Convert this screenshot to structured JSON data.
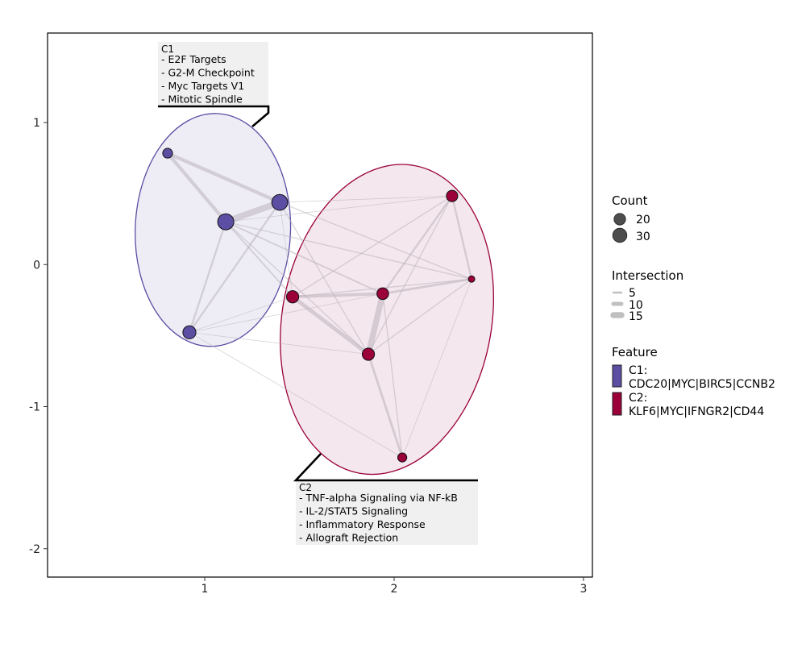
{
  "chart_data": {
    "type": "network",
    "title": "",
    "xlabel": "",
    "ylabel": "",
    "xlim": [
      0.17,
      3.047
    ],
    "ylim": [
      -2.2,
      1.63
    ],
    "x_ticks": [
      1,
      2,
      3
    ],
    "x_tick_labels": [
      "1",
      "2",
      "3"
    ],
    "y_ticks": [
      1,
      0,
      -1,
      -2
    ],
    "y_tick_labels": [
      "1",
      "0",
      "-1",
      "-2"
    ],
    "grid": false,
    "colors": {
      "C1": "#5b4ea3",
      "C2": "#9b0039",
      "edge": "#c8c0c8"
    },
    "clusters": [
      {
        "id": "C1",
        "center": [
          1.043,
          0.244
        ],
        "semi_axes": [
          0.41,
          0.82
        ],
        "angle_deg": 2,
        "label_title": "C1",
        "label_lines": [
          "- E2F Targets",
          "- G2-M Checkpoint",
          "- Myc Targets V1",
          "- Mitotic Spindle"
        ]
      },
      {
        "id": "C2",
        "center": [
          1.962,
          -0.386
        ],
        "semi_axes": [
          0.553,
          1.1
        ],
        "angle_deg": 10,
        "label_title": "C2",
        "label_lines": [
          "- TNF-alpha Signaling via NF-kB",
          "- IL-2/STAT5 Signaling",
          "- Inflammatory Response",
          "- Allograft Rejection"
        ]
      }
    ],
    "nodes": [
      {
        "id": "A",
        "cluster": "C1",
        "x": 0.804,
        "y": 0.784,
        "count": 14
      },
      {
        "id": "B",
        "cluster": "C1",
        "x": 1.111,
        "y": 0.301,
        "count": 38
      },
      {
        "id": "C",
        "cluster": "C1",
        "x": 1.396,
        "y": 0.438,
        "count": 37
      },
      {
        "id": "D",
        "cluster": "C1",
        "x": 0.919,
        "y": -0.477,
        "count": 25
      },
      {
        "id": "E",
        "cluster": "C2",
        "x": 2.306,
        "y": 0.483,
        "count": 19
      },
      {
        "id": "F",
        "cluster": "C2",
        "x": 1.464,
        "y": -0.227,
        "count": 22
      },
      {
        "id": "G",
        "cluster": "C2",
        "x": 1.94,
        "y": -0.205,
        "count": 20
      },
      {
        "id": "H",
        "cluster": "C2",
        "x": 2.409,
        "y": -0.102,
        "count": 6
      },
      {
        "id": "I",
        "cluster": "C2",
        "x": 1.864,
        "y": -0.631,
        "count": 22
      },
      {
        "id": "J",
        "cluster": "C2",
        "x": 2.043,
        "y": -1.358,
        "count": 12
      }
    ],
    "edges": [
      {
        "from": "A",
        "to": "B",
        "intersection": 8
      },
      {
        "from": "A",
        "to": "C",
        "intersection": 8
      },
      {
        "from": "B",
        "to": "C",
        "intersection": 15
      },
      {
        "from": "B",
        "to": "D",
        "intersection": 4
      },
      {
        "from": "C",
        "to": "D",
        "intersection": 4
      },
      {
        "from": "B",
        "to": "F",
        "intersection": 3
      },
      {
        "from": "B",
        "to": "G",
        "intersection": 3
      },
      {
        "from": "B",
        "to": "H",
        "intersection": 2
      },
      {
        "from": "B",
        "to": "I",
        "intersection": 2
      },
      {
        "from": "B",
        "to": "E",
        "intersection": 1
      },
      {
        "from": "C",
        "to": "E",
        "intersection": 1
      },
      {
        "from": "C",
        "to": "H",
        "intersection": 2
      },
      {
        "from": "C",
        "to": "I",
        "intersection": 2
      },
      {
        "from": "C",
        "to": "F",
        "intersection": 1
      },
      {
        "from": "D",
        "to": "F",
        "intersection": 1
      },
      {
        "from": "D",
        "to": "G",
        "intersection": 1
      },
      {
        "from": "D",
        "to": "I",
        "intersection": 1
      },
      {
        "from": "D",
        "to": "J",
        "intersection": 1
      },
      {
        "from": "F",
        "to": "G",
        "intersection": 7
      },
      {
        "from": "F",
        "to": "I",
        "intersection": 9
      },
      {
        "from": "G",
        "to": "I",
        "intersection": 14
      },
      {
        "from": "G",
        "to": "H",
        "intersection": 5
      },
      {
        "from": "E",
        "to": "G",
        "intersection": 4
      },
      {
        "from": "E",
        "to": "I",
        "intersection": 2
      },
      {
        "from": "E",
        "to": "H",
        "intersection": 4
      },
      {
        "from": "E",
        "to": "F",
        "intersection": 2
      },
      {
        "from": "H",
        "to": "I",
        "intersection": 2
      },
      {
        "from": "F",
        "to": "H",
        "intersection": 2
      },
      {
        "from": "I",
        "to": "J",
        "intersection": 5
      },
      {
        "from": "G",
        "to": "J",
        "intersection": 2
      },
      {
        "from": "H",
        "to": "J",
        "intersection": 1
      }
    ],
    "legend": {
      "placement": "right",
      "count": {
        "title": "Count",
        "values": [
          20,
          30
        ],
        "labels": [
          "20",
          "30"
        ]
      },
      "intersection": {
        "title": "Intersection",
        "values": [
          5,
          10,
          15
        ],
        "labels": [
          "5",
          "10",
          "15"
        ]
      },
      "feature": {
        "title": "Feature",
        "items": [
          {
            "id": "C1",
            "line1": "C1:",
            "line2": "CDC20|MYC|BIRC5|CCNB2"
          },
          {
            "id": "C2",
            "line1": "C2:",
            "line2": "KLF6|MYC|IFNGR2|CD44"
          }
        ]
      }
    }
  }
}
